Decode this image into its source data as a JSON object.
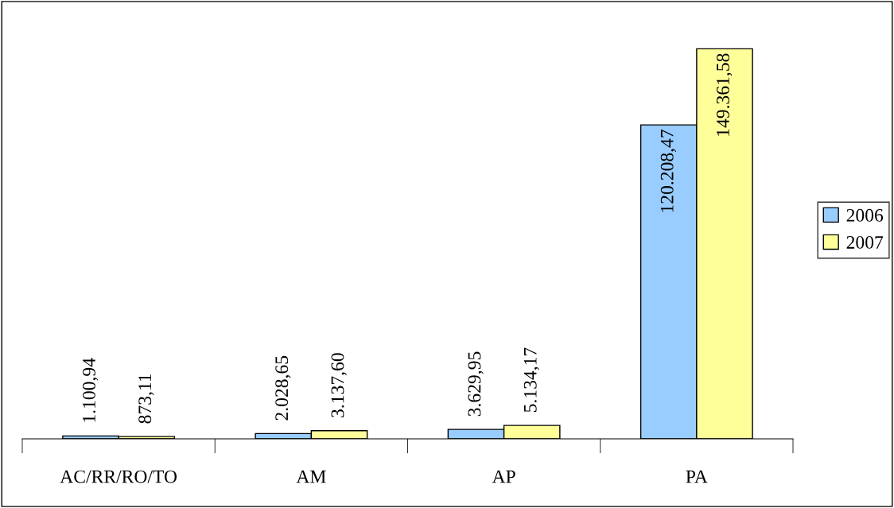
{
  "chart_data": {
    "type": "bar",
    "categories": [
      "AC/RR/RO/TO",
      "AM",
      "AP",
      "PA"
    ],
    "series": [
      {
        "name": "2006",
        "color": "#99ccff",
        "values": [
          1100.94,
          2028.65,
          3629.95,
          120208.47
        ],
        "value_labels": [
          "1.100,94",
          "2.028,65",
          "3.629,95",
          "120.208,47"
        ]
      },
      {
        "name": "2007",
        "color": "#ffff99",
        "values": [
          873.11,
          3137.6,
          5134.17,
          149361.58
        ],
        "value_labels": [
          "873,11",
          "3.137,60",
          "5.134,17",
          "149.361,58"
        ]
      }
    ],
    "grid": false,
    "legend": "right"
  }
}
